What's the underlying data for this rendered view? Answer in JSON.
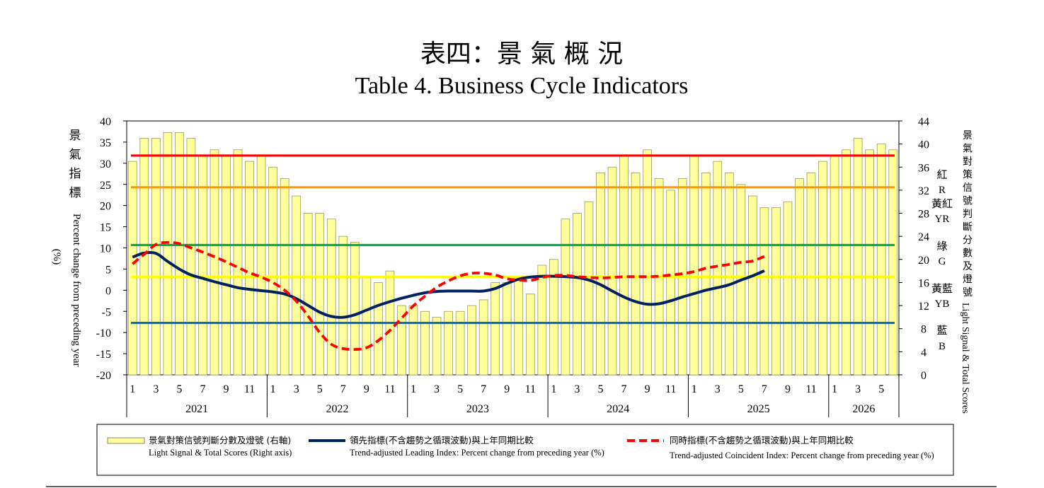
{
  "title_zh": "表四：景 氣 概 況",
  "title_en": "Table 4. Business Cycle Indicators",
  "left_axis_label_zh": "景氣指標",
  "left_axis_label_en": "Percent change from preceding year",
  "left_axis_unit": "(%)",
  "right_axis_label_zh": "景氣對策信號判斷分數及燈號",
  "right_axis_label_en": "Light Signal & Total Scores",
  "signal_labels": [
    {
      "zh": "紅",
      "en": "R",
      "lo": 38,
      "hi": 45
    },
    {
      "zh": "黃紅",
      "en": "YR",
      "lo": 32,
      "hi": 37
    },
    {
      "zh": "綠",
      "en": "G",
      "lo": 23,
      "hi": 31
    },
    {
      "zh": "黃藍",
      "en": "YB",
      "lo": 17,
      "hi": 22
    },
    {
      "zh": "藍",
      "en": "B",
      "lo": 9,
      "hi": 16
    }
  ],
  "colors": {
    "bar_fill": "#FFFF99",
    "bar_stroke": "#999966",
    "leading": "#002060",
    "coincident": "#FF0000",
    "red_line": "#FF0000",
    "orange_line": "#FF9900",
    "green_line": "#00B050",
    "yellow_line": "#FFFF00",
    "blue_line": "#0070C0"
  },
  "legend": [
    {
      "zh": "景氣對策信號判斷分數及燈號 (右軸)",
      "en": "Light Signal & Total Scores (Right axis)"
    },
    {
      "zh": "領先指標(不含趨勢之循環波動)與上年同期比較",
      "en": "Trend-adjusted Leading Index: Percent change from preceding year (%)"
    },
    {
      "zh": "同時指標(不含趨勢之循環波動)與上年同期比較",
      "en": "Trend-adjusted Coincident Index: Percent change from preceding year (%)"
    }
  ],
  "chart_data": {
    "type": "bar",
    "left_ylim": [
      -20,
      40
    ],
    "left_ticks": [
      -20,
      -15,
      -10,
      -5,
      0,
      5,
      10,
      15,
      20,
      25,
      30,
      35,
      40
    ],
    "right_ylim": [
      0,
      44
    ],
    "right_ticks": [
      0,
      4,
      8,
      12,
      16,
      20,
      24,
      28,
      32,
      36,
      40,
      44
    ],
    "years": [
      "2021",
      "2022",
      "2023",
      "2024",
      "2025",
      "2026"
    ],
    "month_tick_labels": [
      "1",
      "3",
      "5",
      "7",
      "9",
      "11"
    ],
    "last_year_tick_labels": [
      "1",
      "3",
      "5"
    ],
    "reference_lines_right_axis": [
      {
        "name": "red",
        "value": 38
      },
      {
        "name": "orange",
        "value": 32.5
      },
      {
        "name": "green",
        "value": 22.5
      },
      {
        "name": "yellow",
        "value": 17
      },
      {
        "name": "blue",
        "value": 9
      }
    ],
    "series": [
      {
        "name": "景氣對策信號判斷分數及燈號 (右軸)",
        "axis": "right",
        "type": "bar",
        "values": [
          37,
          41,
          41,
          42,
          42,
          41,
          38,
          39,
          38,
          39,
          37,
          38,
          36,
          34,
          31,
          28,
          28,
          27,
          24,
          23,
          17,
          16,
          18,
          12,
          12,
          11,
          10,
          11,
          11,
          12,
          13,
          16,
          16,
          17,
          14,
          19,
          20,
          27,
          28,
          30,
          35,
          36,
          38,
          35,
          39,
          34,
          32,
          34,
          38,
          35,
          37,
          35,
          33,
          31,
          29,
          29,
          30,
          34,
          35,
          37,
          38,
          39,
          41,
          39,
          40,
          39
        ]
      },
      {
        "name": "領先指標(不含趨勢之循環波動)與上年同期比較",
        "axis": "left",
        "type": "line",
        "values": [
          7.8,
          8.8,
          8.7,
          6.8,
          5.0,
          3.6,
          2.8,
          2.0,
          1.3,
          0.6,
          0.2,
          -0.1,
          -0.4,
          -0.9,
          -2.0,
          -3.6,
          -5.2,
          -6.2,
          -6.4,
          -5.8,
          -4.7,
          -3.6,
          -2.7,
          -1.9,
          -1.2,
          -0.6,
          -0.3,
          -0.2,
          -0.2,
          -0.2,
          -0.2,
          0.4,
          1.6,
          2.6,
          3.1,
          3.3,
          3.3,
          3.2,
          3.0,
          2.4,
          1.3,
          -0.2,
          -1.6,
          -2.7,
          -3.3,
          -3.2,
          -2.5,
          -1.6,
          -0.8,
          0.0,
          0.6,
          1.3,
          2.4,
          3.4,
          4.6
        ]
      },
      {
        "name": "同時指標(不含趨勢之循環波動)與上年同期比較",
        "axis": "left",
        "type": "line",
        "values": [
          6.2,
          8.5,
          10.8,
          11.3,
          11.0,
          10.0,
          9.0,
          7.9,
          6.7,
          5.4,
          4.1,
          3.1,
          1.8,
          0.0,
          -2.6,
          -6.1,
          -10.0,
          -12.8,
          -13.8,
          -14.0,
          -13.6,
          -11.9,
          -9.5,
          -6.6,
          -3.7,
          -1.4,
          0.7,
          2.2,
          3.4,
          4.0,
          4.0,
          3.6,
          2.7,
          2.4,
          2.3,
          3.0,
          3.5,
          3.5,
          3.2,
          3.0,
          2.9,
          3.0,
          3.2,
          3.2,
          3.2,
          3.3,
          3.6,
          3.9,
          4.4,
          5.2,
          5.7,
          6.1,
          6.6,
          6.9,
          8.0
        ]
      }
    ]
  }
}
